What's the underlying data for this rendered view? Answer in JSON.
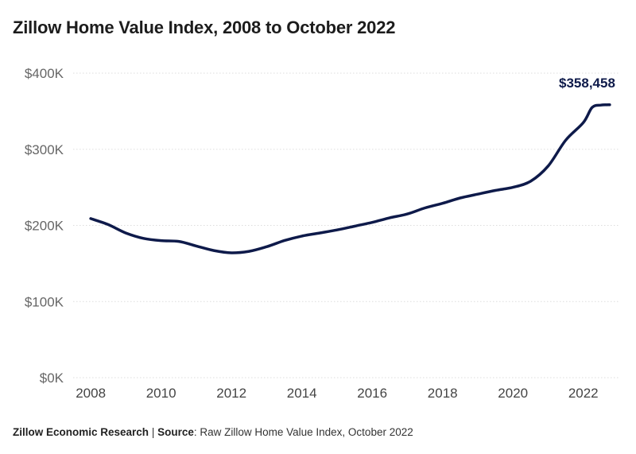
{
  "title": "Zillow Home Value Index, 2008 to October 2022",
  "footer": {
    "org": "Zillow Economic Research",
    "separator": " | ",
    "source_label": "Source",
    "source_text": ": Raw Zillow Home Value Index, October 2022"
  },
  "colors": {
    "line": "#0e1a4a",
    "end_label": "#0e1a4a",
    "grid": "#dddddd"
  },
  "chart_data": {
    "type": "line",
    "title": "Zillow Home Value Index, 2008 to October 2022",
    "xlabel": "",
    "ylabel": "",
    "x_ticks": [
      "2008",
      "2010",
      "2012",
      "2014",
      "2016",
      "2018",
      "2020",
      "2022"
    ],
    "y_ticks": [
      "$0K",
      "$100K",
      "$200K",
      "$300K",
      "$400K"
    ],
    "ylim": [
      0,
      400000
    ],
    "xlim": [
      "2007-07",
      "2023-01"
    ],
    "grid": "horizontal dotted",
    "legend": "none",
    "end_label": "$358,458",
    "series": [
      {
        "x": [
          "2008-01",
          "2008-07",
          "2009-01",
          "2009-07",
          "2010-01",
          "2010-07",
          "2011-01",
          "2011-07",
          "2012-01",
          "2012-07",
          "2013-01",
          "2013-07",
          "2014-01",
          "2014-07",
          "2015-01",
          "2015-07",
          "2016-01",
          "2016-07",
          "2017-01",
          "2017-07",
          "2018-01",
          "2018-07",
          "2019-01",
          "2019-07",
          "2020-01",
          "2020-07",
          "2021-01",
          "2021-07",
          "2022-01",
          "2022-04",
          "2022-07",
          "2022-10"
        ],
        "values": [
          209000,
          201000,
          190000,
          183000,
          180000,
          179000,
          173000,
          167000,
          164000,
          166000,
          172000,
          180000,
          186000,
          190000,
          194000,
          199000,
          204000,
          210000,
          215000,
          223000,
          229000,
          236000,
          241000,
          246000,
          250000,
          258000,
          278000,
          312000,
          335000,
          355000,
          358000,
          358458
        ]
      }
    ]
  }
}
